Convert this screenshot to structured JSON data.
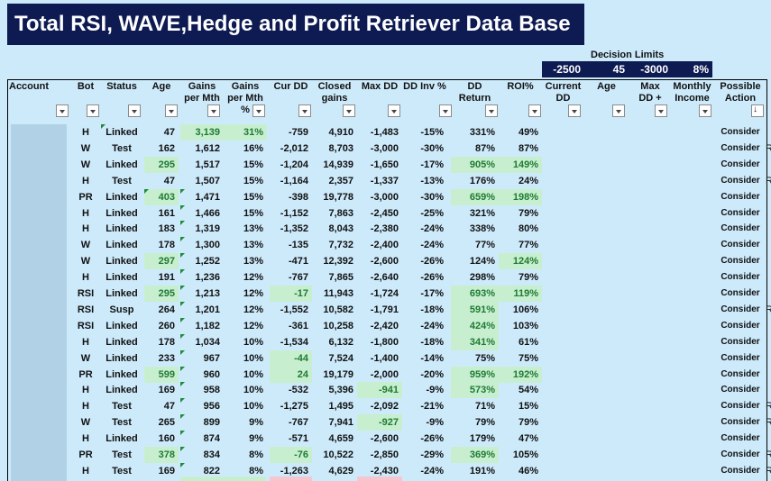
{
  "title": "Total RSI, WAVE,Hedge and Profit Retriever Data Base",
  "decision_limits": {
    "label": "Decision Limits",
    "values": [
      "-2500",
      "45",
      "-3000",
      "8%"
    ]
  },
  "headers": [
    {
      "key": "account",
      "text": "Account"
    },
    {
      "key": "bot",
      "text": "Bot"
    },
    {
      "key": "status",
      "text": "Status"
    },
    {
      "key": "age",
      "text": "Age"
    },
    {
      "key": "gains_pm",
      "text": "Gains\nper Mth"
    },
    {
      "key": "gains_pct",
      "text": "Gains\nper Mth\n%"
    },
    {
      "key": "cur_dd",
      "text": "Cur DD"
    },
    {
      "key": "closed",
      "text": "Closed\ngains"
    },
    {
      "key": "max_dd",
      "text": "Max DD"
    },
    {
      "key": "dd_inv",
      "text": "DD Inv %"
    },
    {
      "key": "dd_ret",
      "text": "DD\nReturn"
    },
    {
      "key": "roi",
      "text": "ROI%"
    },
    {
      "key": "current_dd",
      "text": "Current\nDD"
    },
    {
      "key": "age2",
      "text": "Age"
    },
    {
      "key": "maxdd_plus",
      "text": "Max\nDD +"
    },
    {
      "key": "monthly_income",
      "text": "Monthly\nIncome"
    },
    {
      "key": "possible_action",
      "text": "Possible\nAction"
    }
  ],
  "rows": [
    {
      "bot": "H",
      "status": "Linked",
      "age": "47",
      "gpm": "3,139",
      "gpct": "31%",
      "cur": "-759",
      "closed": "4,910",
      "maxdd": "-1,483",
      "inv": "-15%",
      "ret": "331%",
      "roi": "49%",
      "action": "Consider",
      "edge": ""
    },
    {
      "bot": "W",
      "status": "Test",
      "age": "162",
      "gpm": "1,612",
      "gpct": "16%",
      "cur": "-2,012",
      "closed": "8,703",
      "maxdd": "-3,000",
      "inv": "-30%",
      "ret": "87%",
      "roi": "87%",
      "action": "Consider",
      "edge": "R"
    },
    {
      "bot": "W",
      "status": "Linked",
      "age": "295",
      "gpm": "1,517",
      "gpct": "15%",
      "cur": "-1,204",
      "closed": "14,939",
      "maxdd": "-1,650",
      "inv": "-17%",
      "ret": "905%",
      "roi": "149%",
      "action": "Consider",
      "edge": ""
    },
    {
      "bot": "H",
      "status": "Test",
      "age": "47",
      "gpm": "1,507",
      "gpct": "15%",
      "cur": "-1,164",
      "closed": "2,357",
      "maxdd": "-1,337",
      "inv": "-13%",
      "ret": "176%",
      "roi": "24%",
      "action": "Consider",
      "edge": "R"
    },
    {
      "bot": "PR",
      "status": "Linked",
      "age": "403",
      "gpm": "1,471",
      "gpct": "15%",
      "cur": "-398",
      "closed": "19,778",
      "maxdd": "-3,000",
      "inv": "-30%",
      "ret": "659%",
      "roi": "198%",
      "action": "Consider",
      "edge": ""
    },
    {
      "bot": "H",
      "status": "Linked",
      "age": "161",
      "gpm": "1,466",
      "gpct": "15%",
      "cur": "-1,152",
      "closed": "7,863",
      "maxdd": "-2,450",
      "inv": "-25%",
      "ret": "321%",
      "roi": "79%",
      "action": "Consider",
      "edge": ""
    },
    {
      "bot": "H",
      "status": "Linked",
      "age": "183",
      "gpm": "1,319",
      "gpct": "13%",
      "cur": "-1,352",
      "closed": "8,043",
      "maxdd": "-2,380",
      "inv": "-24%",
      "ret": "338%",
      "roi": "80%",
      "action": "Consider",
      "edge": ""
    },
    {
      "bot": "W",
      "status": "Linked",
      "age": "178",
      "gpm": "1,300",
      "gpct": "13%",
      "cur": "-135",
      "closed": "7,732",
      "maxdd": "-2,400",
      "inv": "-24%",
      "ret": "77%",
      "roi": "77%",
      "action": "Consider",
      "edge": ""
    },
    {
      "bot": "W",
      "status": "Linked",
      "age": "297",
      "gpm": "1,252",
      "gpct": "13%",
      "cur": "-471",
      "closed": "12,392",
      "maxdd": "-2,600",
      "inv": "-26%",
      "ret": "124%",
      "roi": "124%",
      "action": "Consider",
      "edge": ""
    },
    {
      "bot": "H",
      "status": "Linked",
      "age": "191",
      "gpm": "1,236",
      "gpct": "12%",
      "cur": "-767",
      "closed": "7,865",
      "maxdd": "-2,640",
      "inv": "-26%",
      "ret": "298%",
      "roi": "79%",
      "action": "Consider",
      "edge": ""
    },
    {
      "bot": "RSI",
      "status": "Linked",
      "age": "295",
      "gpm": "1,213",
      "gpct": "12%",
      "cur": "-17",
      "closed": "11,943",
      "maxdd": "-1,724",
      "inv": "-17%",
      "ret": "693%",
      "roi": "119%",
      "action": "Consider",
      "edge": ""
    },
    {
      "bot": "RSI",
      "status": "Susp",
      "age": "264",
      "gpm": "1,201",
      "gpct": "12%",
      "cur": "-1,552",
      "closed": "10,582",
      "maxdd": "-1,791",
      "inv": "-18%",
      "ret": "591%",
      "roi": "106%",
      "action": "Consider",
      "edge": "R"
    },
    {
      "bot": "RSI",
      "status": "Linked",
      "age": "260",
      "gpm": "1,182",
      "gpct": "12%",
      "cur": "-361",
      "closed": "10,258",
      "maxdd": "-2,420",
      "inv": "-24%",
      "ret": "424%",
      "roi": "103%",
      "action": "Consider",
      "edge": ""
    },
    {
      "bot": "H",
      "status": "Linked",
      "age": "178",
      "gpm": "1,034",
      "gpct": "10%",
      "cur": "-1,534",
      "closed": "6,132",
      "maxdd": "-1,800",
      "inv": "-18%",
      "ret": "341%",
      "roi": "61%",
      "action": "Consider",
      "edge": ""
    },
    {
      "bot": "W",
      "status": "Linked",
      "age": "233",
      "gpm": "967",
      "gpct": "10%",
      "cur": "-44",
      "closed": "7,524",
      "maxdd": "-1,400",
      "inv": "-14%",
      "ret": "75%",
      "roi": "75%",
      "action": "Consider",
      "edge": ""
    },
    {
      "bot": "PR",
      "status": "Linked",
      "age": "599",
      "gpm": "960",
      "gpct": "10%",
      "cur": "24",
      "closed": "19,179",
      "maxdd": "-2,000",
      "inv": "-20%",
      "ret": "959%",
      "roi": "192%",
      "action": "Consider",
      "edge": ""
    },
    {
      "bot": "H",
      "status": "Linked",
      "age": "169",
      "gpm": "958",
      "gpct": "10%",
      "cur": "-532",
      "closed": "5,396",
      "maxdd": "-941",
      "inv": "-9%",
      "ret": "573%",
      "roi": "54%",
      "action": "Consider",
      "edge": ""
    },
    {
      "bot": "H",
      "status": "Test",
      "age": "47",
      "gpm": "956",
      "gpct": "10%",
      "cur": "-1,275",
      "closed": "1,495",
      "maxdd": "-2,092",
      "inv": "-21%",
      "ret": "71%",
      "roi": "15%",
      "action": "Consider",
      "edge": "R"
    },
    {
      "bot": "W",
      "status": "Test",
      "age": "265",
      "gpm": "899",
      "gpct": "9%",
      "cur": "-767",
      "closed": "7,941",
      "maxdd": "-927",
      "inv": "-9%",
      "ret": "79%",
      "roi": "79%",
      "action": "Consider",
      "edge": "R"
    },
    {
      "bot": "H",
      "status": "Linked",
      "age": "160",
      "gpm": "874",
      "gpct": "9%",
      "cur": "-571",
      "closed": "4,659",
      "maxdd": "-2,600",
      "inv": "-26%",
      "ret": "179%",
      "roi": "47%",
      "action": "Consider",
      "edge": ""
    },
    {
      "bot": "PR",
      "status": "Test",
      "age": "378",
      "gpm": "834",
      "gpct": "8%",
      "cur": "-76",
      "closed": "10,522",
      "maxdd": "-2,850",
      "inv": "-29%",
      "ret": "369%",
      "roi": "105%",
      "action": "Consider",
      "edge": "R"
    },
    {
      "bot": "H",
      "status": "Test",
      "age": "169",
      "gpm": "822",
      "gpct": "8%",
      "cur": "-1,263",
      "closed": "4,629",
      "maxdd": "-2,430",
      "inv": "-24%",
      "ret": "191%",
      "roi": "46%",
      "action": "Consider",
      "edge": "R"
    }
  ],
  "colors": {
    "title_bg": "#0d1b52",
    "sheet_bg": "#cdeafb",
    "highlight_green": "#c7efcf",
    "highlight_text": "#1f7a33",
    "pink": "#f5c6cf"
  },
  "icons": {
    "filter": "filter-dropdown-icon",
    "sort": "sort-descending-icon"
  }
}
